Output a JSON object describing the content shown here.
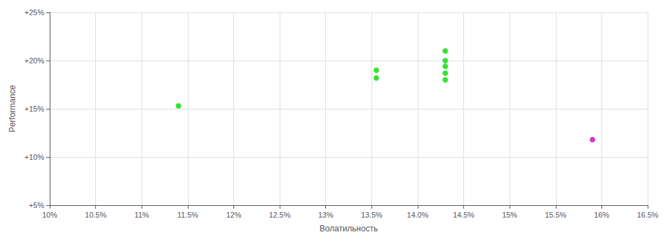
{
  "chart_data": {
    "type": "scatter",
    "x_label": "Волатильность",
    "y_label": "Performance",
    "xlim": [
      0.1,
      0.165
    ],
    "ylim": [
      0.05,
      0.25
    ],
    "xticks": [
      {
        "value": 0.1,
        "label": "10%"
      },
      {
        "value": 0.105,
        "label": "10.5%"
      },
      {
        "value": 0.11,
        "label": "11%"
      },
      {
        "value": 0.115,
        "label": "11.5%"
      },
      {
        "value": 0.12,
        "label": "12%"
      },
      {
        "value": 0.125,
        "label": "12.5%"
      },
      {
        "value": 0.13,
        "label": "13%"
      },
      {
        "value": 0.135,
        "label": "13.5%"
      },
      {
        "value": 0.14,
        "label": "14.0%"
      },
      {
        "value": 0.145,
        "label": "14.5%"
      },
      {
        "value": 0.15,
        "label": "15%"
      },
      {
        "value": 0.155,
        "label": "15.5%"
      },
      {
        "value": 0.16,
        "label": "16%"
      },
      {
        "value": 0.165,
        "label": "16.5%"
      }
    ],
    "yticks": [
      {
        "value": 0.05,
        "label": "+5%"
      },
      {
        "value": 0.1,
        "label": "+10%"
      },
      {
        "value": 0.15,
        "label": "+15%"
      },
      {
        "value": 0.2,
        "label": "+20%"
      },
      {
        "value": 0.25,
        "label": "+25%"
      }
    ],
    "grid": true,
    "series": [
      {
        "color": "#00dd00",
        "x": [
          0.114,
          0.1355,
          0.1355,
          0.143,
          0.143,
          0.143,
          0.143,
          0.143
        ],
        "values": [
          0.153,
          0.19,
          0.182,
          0.21,
          0.2,
          0.194,
          0.187,
          0.18
        ]
      },
      {
        "color": "#cc00cc",
        "x": [
          0.159
        ],
        "values": [
          0.118
        ]
      }
    ]
  }
}
